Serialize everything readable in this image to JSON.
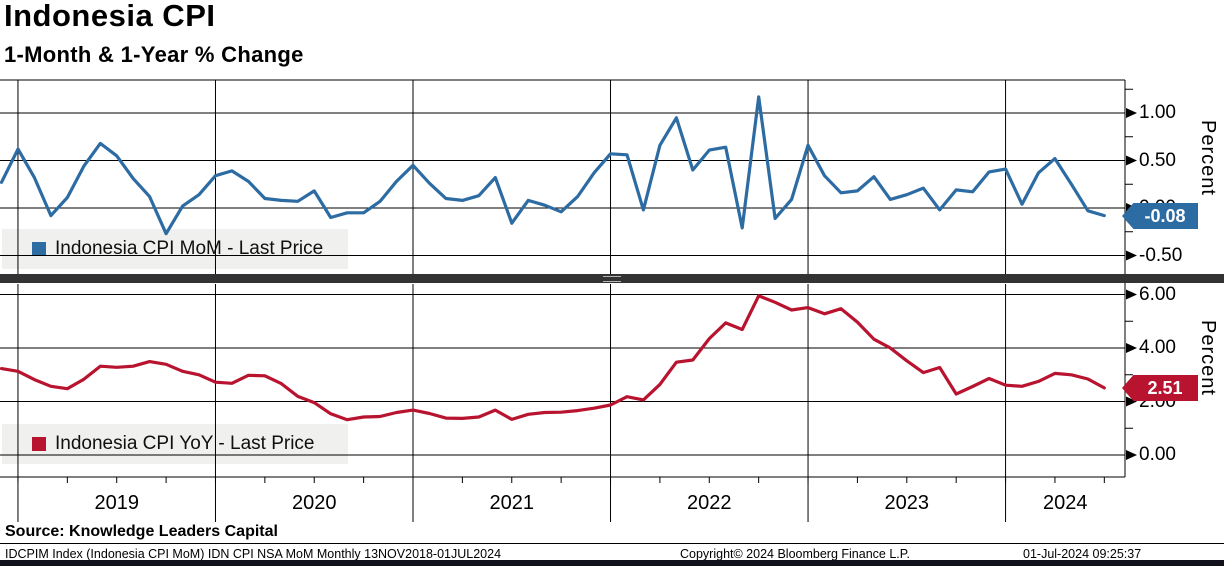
{
  "header": {
    "title": "Indonesia CPI",
    "subtitle": "1-Month & 1-Year % Change"
  },
  "x_axis": {
    "year_labels": [
      "2019",
      "2020",
      "2021",
      "2022",
      "2023",
      "2024"
    ]
  },
  "chart_data": [
    {
      "type": "line",
      "title": "Indonesia CPI MoM - Last Price",
      "color": "#2d6ba3",
      "frequency": "monthly",
      "x_start": "2018-11",
      "x_end": "2024-06",
      "values": [
        0.27,
        0.62,
        0.32,
        -0.08,
        0.11,
        0.44,
        0.68,
        0.55,
        0.31,
        0.12,
        -0.27,
        0.02,
        0.14,
        0.34,
        0.39,
        0.28,
        0.1,
        0.08,
        0.07,
        0.18,
        -0.1,
        -0.05,
        -0.05,
        0.07,
        0.28,
        0.45,
        0.26,
        0.1,
        0.08,
        0.13,
        0.32,
        -0.16,
        0.08,
        0.03,
        -0.04,
        0.12,
        0.37,
        0.57,
        0.56,
        -0.02,
        0.66,
        0.95,
        0.4,
        0.61,
        0.64,
        -0.21,
        1.17,
        -0.11,
        0.09,
        0.66,
        0.34,
        0.16,
        0.18,
        0.33,
        0.09,
        0.14,
        0.21,
        -0.02,
        0.19,
        0.17,
        0.38,
        0.41,
        0.04,
        0.37,
        0.52,
        0.25,
        -0.03,
        -0.08
      ],
      "ylabel": "Percent",
      "ylim": [
        -0.69,
        1.35
      ],
      "yticks_major": [
        1.0,
        0.5,
        0.0,
        -0.5
      ],
      "ytick_labels": [
        "1.00",
        "0.50",
        "0.00",
        "-0.50"
      ],
      "yticks_minor": [
        1.25,
        0.75,
        0.25,
        -0.25
      ],
      "last_price": "-0.08",
      "grid": true,
      "legend_position": "bottom-left"
    },
    {
      "type": "line",
      "title": "Indonesia CPI YoY - Last Price",
      "color": "#b8132f",
      "frequency": "monthly",
      "x_start": "2018-11",
      "x_end": "2024-06",
      "values": [
        3.23,
        3.13,
        2.82,
        2.57,
        2.48,
        2.83,
        3.32,
        3.28,
        3.32,
        3.49,
        3.39,
        3.13,
        3.0,
        2.72,
        2.68,
        2.98,
        2.96,
        2.67,
        2.19,
        1.96,
        1.54,
        1.32,
        1.42,
        1.44,
        1.59,
        1.68,
        1.55,
        1.38,
        1.37,
        1.42,
        1.68,
        1.33,
        1.52,
        1.59,
        1.6,
        1.66,
        1.75,
        1.87,
        2.18,
        2.06,
        2.64,
        3.47,
        3.55,
        4.35,
        4.94,
        4.69,
        5.95,
        5.71,
        5.42,
        5.51,
        5.28,
        5.47,
        4.97,
        4.33,
        4.0,
        3.52,
        3.08,
        3.27,
        2.28,
        2.56,
        2.86,
        2.61,
        2.57,
        2.75,
        3.05,
        3.0,
        2.84,
        2.51
      ],
      "ylabel": "Percent",
      "ylim": [
        -0.82,
        6.39
      ],
      "yticks_major": [
        6.0,
        4.0,
        2.0,
        0.0
      ],
      "ytick_labels": [
        "6.00",
        "4.00",
        "2.00",
        "0.00"
      ],
      "yticks_minor": [
        5.0,
        3.0,
        1.0
      ],
      "last_price": "2.51",
      "grid": true,
      "legend_position": "bottom-left"
    }
  ],
  "footer": {
    "source": "Source: Knowledge Leaders Capital",
    "meta": "IDCPIM Index (Indonesia CPI MoM) IDN CPI NSA MoM  Monthly 13NOV2018-01JUL2024",
    "copyright": "Copyright© 2024 Bloomberg Finance L.P.",
    "timestamp": "01-Jul-2024 09:25:37"
  }
}
